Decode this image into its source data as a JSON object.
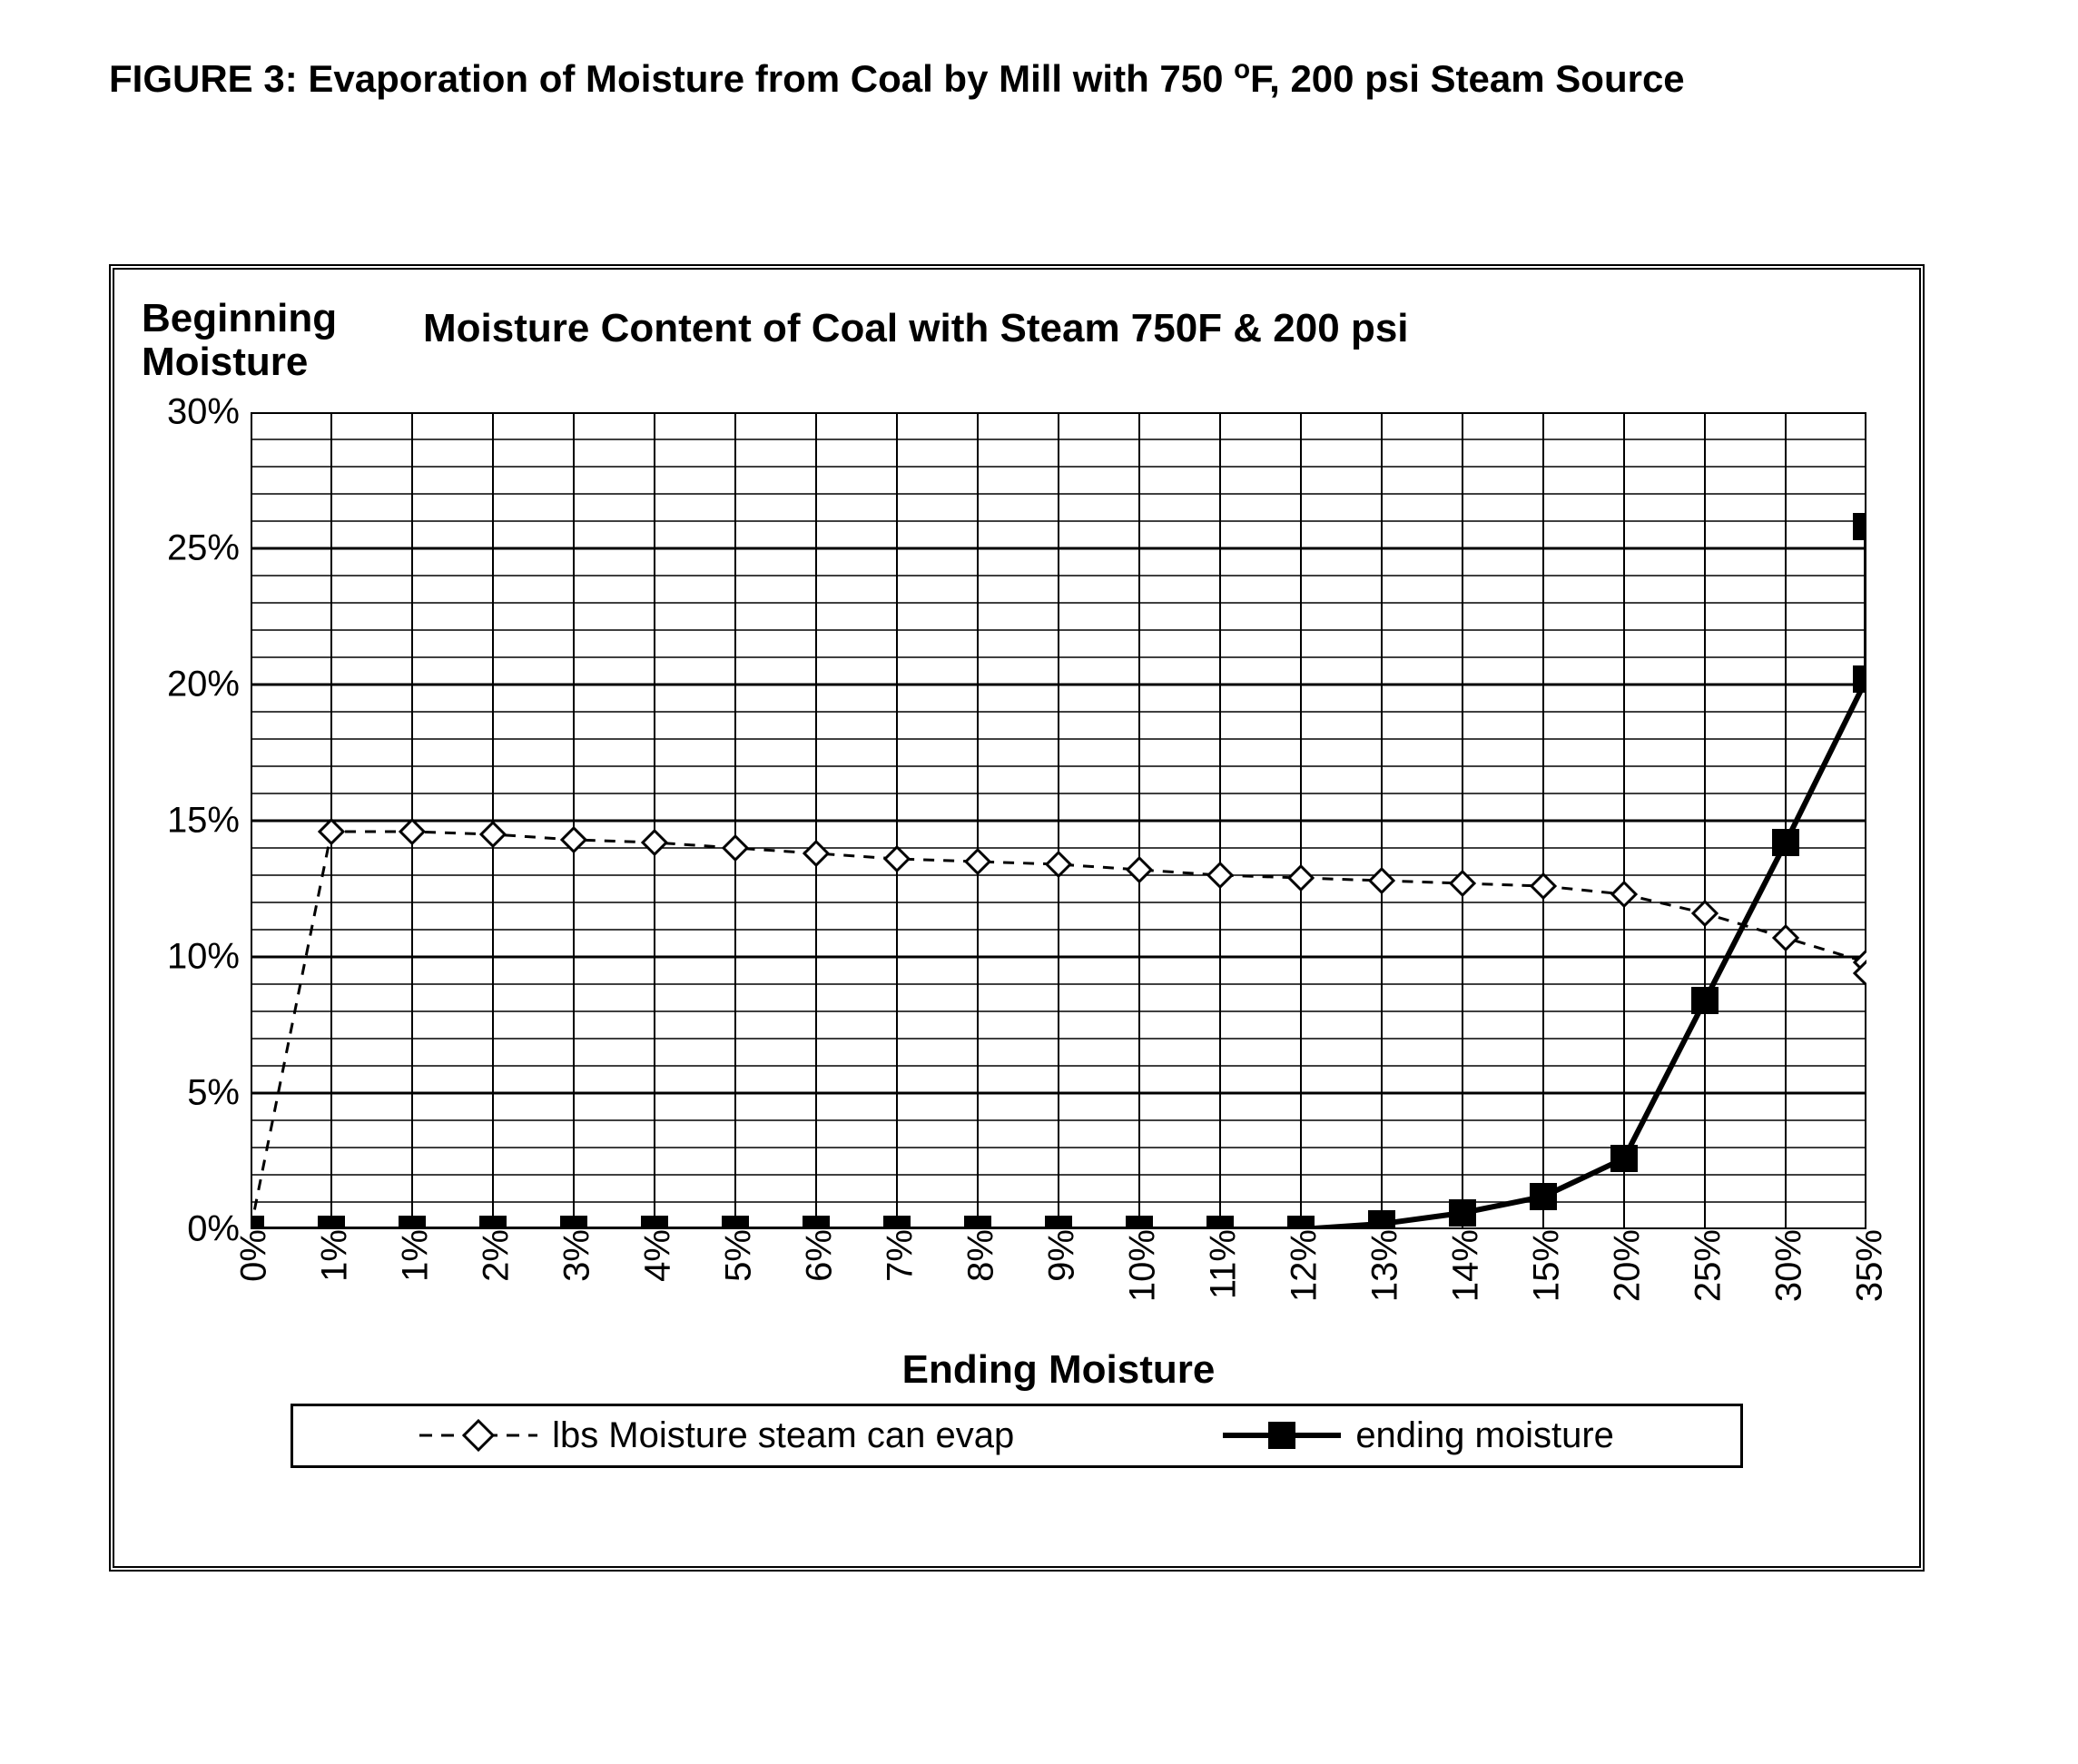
{
  "caption_prefix": "FIGURE 3:  ",
  "caption_main": "Evaporation of Moisture from Coal by Mill with 750 ",
  "caption_deg": "o",
  "caption_suffix": "F, 200 psi Steam Source",
  "chart": {
    "type": "line",
    "chart_title": "Moisture Content of Coal with Steam 750F & 200 psi",
    "y_axis_title_line1": "Beginning",
    "y_axis_title_line2": "Moisture",
    "x_axis_title": "Ending Moisture",
    "background_color": "#ffffff",
    "grid_color": "#000000",
    "border_color": "#000000",
    "tick_font_size": 40,
    "title_font_size": 44,
    "x_categories": [
      "0%",
      "1%",
      "1%",
      "2%",
      "3%",
      "4%",
      "5%",
      "6%",
      "7%",
      "8%",
      "9%",
      "10%",
      "11%",
      "12%",
      "13%",
      "14%",
      "15%",
      "20%",
      "25%",
      "30%",
      "35%"
    ],
    "y_ticks": [
      0,
      5,
      10,
      15,
      20,
      25,
      30
    ],
    "y_tick_labels": [
      "0%",
      "5%",
      "10%",
      "15%",
      "20%",
      "25%",
      "30%"
    ],
    "y_minor_step": 1,
    "ylim": [
      0,
      30
    ],
    "series": [
      {
        "name": "lbs Moisture steam can evap",
        "legend_label": "lbs Moisture steam can evap",
        "color": "#000000",
        "line_width": 3,
        "dash": "12,10",
        "marker": "diamond-open",
        "marker_size": 26,
        "values": [
          0.0,
          14.6,
          14.6,
          14.5,
          14.3,
          14.2,
          14.0,
          13.8,
          13.6,
          13.5,
          13.4,
          13.2,
          13.0,
          12.9,
          12.8,
          12.7,
          12.6,
          12.3,
          11.6,
          10.7,
          9.8,
          9.4
        ]
      },
      {
        "name": "ending moisture",
        "legend_label": "ending moisture",
        "color": "#000000",
        "line_width": 6,
        "dash": "",
        "marker": "square-filled",
        "marker_size": 30,
        "values": [
          0.0,
          0.0,
          0.0,
          0.0,
          0.0,
          0.0,
          0.0,
          0.0,
          0.0,
          0.0,
          0.0,
          0.0,
          0.0,
          0.0,
          0.2,
          0.6,
          1.2,
          2.6,
          8.4,
          14.2,
          20.2,
          25.8
        ]
      }
    ],
    "legend_border_color": "#000000"
  }
}
